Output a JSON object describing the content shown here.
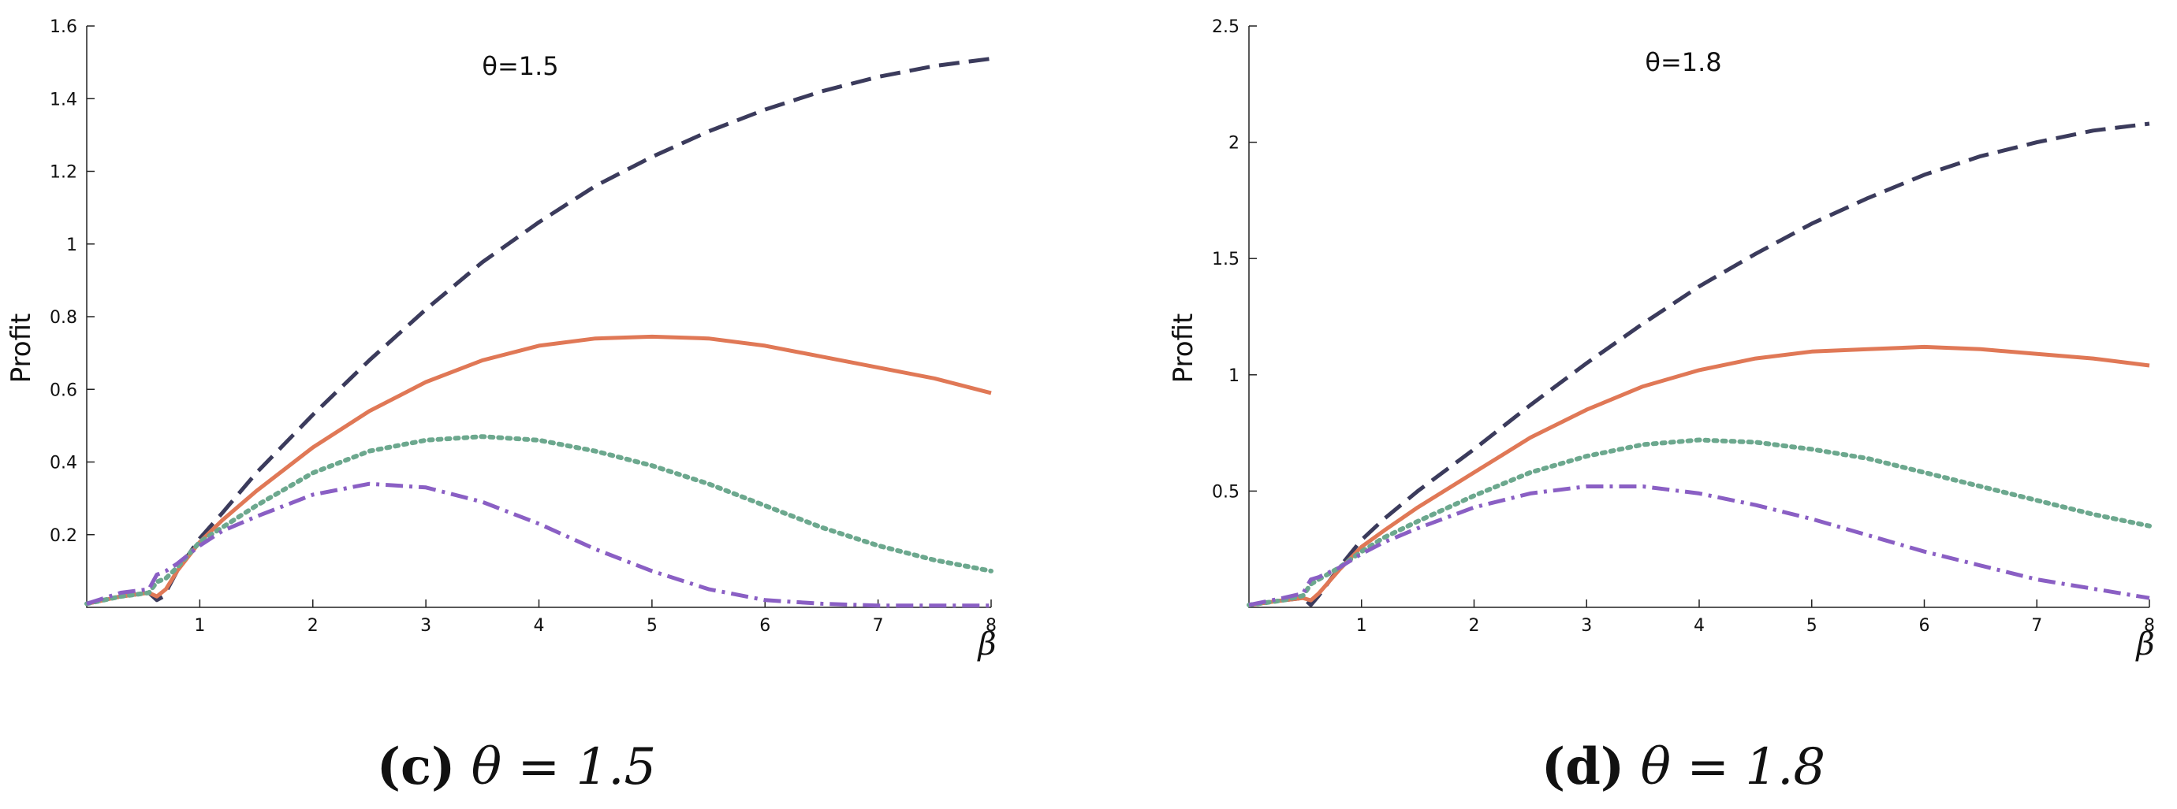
{
  "chart_data": [
    {
      "type": "line",
      "panel_label": "(c)",
      "caption": "θ = 1.5",
      "annotation": "θ=1.5",
      "ylabel": "Profit",
      "xlabel": "β",
      "xlim": [
        0,
        8
      ],
      "ylim": [
        0,
        1.6
      ],
      "xticks": [
        "1",
        "2",
        "3",
        "4",
        "5",
        "6",
        "7",
        "8"
      ],
      "yticks": [
        "0.2",
        "0.4",
        "0.6",
        "0.8",
        "1",
        "1.2",
        "1.4",
        "1.6"
      ],
      "series": [
        {
          "style": "dashed",
          "color": "#3b3b5c",
          "x": [
            0,
            0.3,
            0.55,
            0.62,
            0.68,
            0.8,
            1.0,
            1.2,
            1.5,
            2,
            2.5,
            3,
            3.5,
            4,
            4.5,
            5,
            5.5,
            6,
            6.5,
            7,
            7.5,
            8
          ],
          "y": [
            0.01,
            0.03,
            0.04,
            0.02,
            0.03,
            0.1,
            0.19,
            0.26,
            0.37,
            0.53,
            0.68,
            0.82,
            0.95,
            1.06,
            1.16,
            1.24,
            1.31,
            1.37,
            1.42,
            1.46,
            1.49,
            1.51
          ]
        },
        {
          "style": "solid",
          "color": "#e07856",
          "x": [
            0,
            0.3,
            0.55,
            0.62,
            0.7,
            0.8,
            1.0,
            1.2,
            1.5,
            2,
            2.5,
            3,
            3.5,
            4,
            4.5,
            5,
            5.5,
            6,
            6.5,
            7,
            7.5,
            8
          ],
          "y": [
            0.01,
            0.03,
            0.04,
            0.03,
            0.05,
            0.1,
            0.18,
            0.24,
            0.32,
            0.44,
            0.54,
            0.62,
            0.68,
            0.72,
            0.74,
            0.745,
            0.74,
            0.72,
            0.69,
            0.66,
            0.63,
            0.59
          ]
        },
        {
          "style": "dotted",
          "color": "#6ca88e",
          "x": [
            0,
            0.3,
            0.55,
            0.62,
            0.7,
            0.8,
            1.0,
            1.2,
            1.5,
            2,
            2.5,
            3,
            3.5,
            4,
            4.5,
            5,
            5.5,
            6,
            6.5,
            7,
            7.5,
            8
          ],
          "y": [
            0.01,
            0.03,
            0.04,
            0.07,
            0.08,
            0.11,
            0.18,
            0.22,
            0.28,
            0.37,
            0.43,
            0.46,
            0.47,
            0.46,
            0.43,
            0.39,
            0.34,
            0.28,
            0.22,
            0.17,
            0.13,
            0.1
          ]
        },
        {
          "style": "dashdot",
          "color": "#8a5fc4",
          "x": [
            0,
            0.3,
            0.55,
            0.62,
            0.7,
            0.8,
            1.0,
            1.2,
            1.5,
            2,
            2.5,
            3,
            3.5,
            4,
            4.5,
            5,
            5.5,
            6,
            6.5,
            7,
            7.5,
            8
          ],
          "y": [
            0.01,
            0.04,
            0.05,
            0.09,
            0.1,
            0.12,
            0.17,
            0.21,
            0.25,
            0.31,
            0.34,
            0.33,
            0.29,
            0.23,
            0.16,
            0.1,
            0.05,
            0.02,
            0.01,
            0.005,
            0.005,
            0.005
          ]
        }
      ]
    },
    {
      "type": "line",
      "panel_label": "(d)",
      "caption": "θ = 1.8",
      "annotation": "θ=1.8",
      "ylabel": "Profit",
      "xlabel": "β",
      "xlim": [
        0,
        8
      ],
      "ylim": [
        0,
        2.5
      ],
      "xticks": [
        "1",
        "2",
        "3",
        "4",
        "5",
        "6",
        "7",
        "8"
      ],
      "yticks": [
        "0.5",
        "1",
        "1.5",
        "2",
        "2.5"
      ],
      "series": [
        {
          "style": "dashed",
          "color": "#3b3b5c",
          "x": [
            0,
            0.3,
            0.48,
            0.55,
            0.62,
            0.8,
            1.0,
            1.2,
            1.5,
            2,
            2.5,
            3,
            3.5,
            4,
            4.5,
            5,
            5.5,
            6,
            6.5,
            7,
            7.5,
            8
          ],
          "y": [
            0.01,
            0.03,
            0.04,
            0.01,
            0.05,
            0.17,
            0.29,
            0.38,
            0.5,
            0.68,
            0.87,
            1.05,
            1.22,
            1.38,
            1.52,
            1.65,
            1.76,
            1.86,
            1.94,
            2.0,
            2.05,
            2.08
          ]
        },
        {
          "style": "solid",
          "color": "#e07856",
          "x": [
            0,
            0.3,
            0.48,
            0.55,
            0.62,
            0.8,
            1.0,
            1.2,
            1.5,
            2,
            2.5,
            3,
            3.5,
            4,
            4.5,
            5,
            5.5,
            6,
            6.5,
            7,
            7.5,
            8
          ],
          "y": [
            0.01,
            0.03,
            0.04,
            0.03,
            0.06,
            0.16,
            0.26,
            0.33,
            0.43,
            0.58,
            0.73,
            0.85,
            0.95,
            1.02,
            1.07,
            1.1,
            1.11,
            1.12,
            1.11,
            1.09,
            1.07,
            1.04
          ]
        },
        {
          "style": "dotted",
          "color": "#6ca88e",
          "x": [
            0,
            0.3,
            0.48,
            0.55,
            0.62,
            0.8,
            1.0,
            1.2,
            1.5,
            2,
            2.5,
            3,
            3.5,
            4,
            4.5,
            5,
            5.5,
            6,
            6.5,
            7,
            7.5,
            8
          ],
          "y": [
            0.01,
            0.03,
            0.05,
            0.1,
            0.12,
            0.17,
            0.24,
            0.3,
            0.37,
            0.48,
            0.58,
            0.65,
            0.7,
            0.72,
            0.71,
            0.68,
            0.64,
            0.58,
            0.52,
            0.46,
            0.4,
            0.35
          ]
        },
        {
          "style": "dashdot",
          "color": "#8a5fc4",
          "x": [
            0,
            0.3,
            0.48,
            0.55,
            0.62,
            0.8,
            1.0,
            1.2,
            1.5,
            2,
            2.5,
            3,
            3.5,
            4,
            4.5,
            5,
            5.5,
            6,
            6.5,
            7,
            7.5,
            8
          ],
          "y": [
            0.01,
            0.04,
            0.06,
            0.12,
            0.13,
            0.17,
            0.23,
            0.28,
            0.34,
            0.43,
            0.49,
            0.52,
            0.52,
            0.49,
            0.44,
            0.38,
            0.31,
            0.24,
            0.18,
            0.12,
            0.08,
            0.04
          ]
        }
      ]
    }
  ]
}
